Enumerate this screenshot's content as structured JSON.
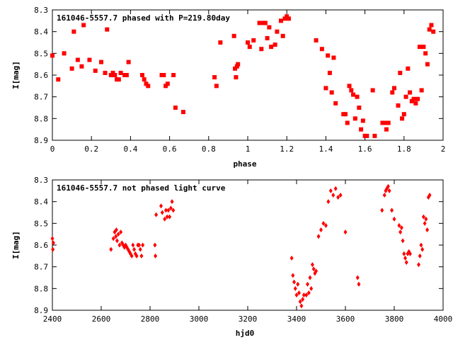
{
  "chart_data": [
    {
      "type": "scatter",
      "title": "161046-5557.7 phased with P=219.80day",
      "xlabel": "phase",
      "ylabel": "I[mag]",
      "xlim": [
        0,
        2
      ],
      "ylim": [
        8.9,
        8.3
      ],
      "y_inverted": true,
      "grid": false,
      "marker": "filled-square",
      "color": "#ff0000",
      "xticks": [
        "0",
        "0.2",
        "0.4",
        "0.6",
        "0.8",
        "1",
        "1.2",
        "1.4",
        "1.6",
        "1.8",
        "2"
      ],
      "xtick_values": [
        0,
        0.2,
        0.4,
        0.6,
        0.8,
        1,
        1.2,
        1.4,
        1.6,
        1.8,
        2
      ],
      "yticks": [
        "8.3",
        "8.4",
        "8.5",
        "8.6",
        "8.7",
        "8.8",
        "8.9"
      ],
      "ytick_values": [
        8.3,
        8.4,
        8.5,
        8.6,
        8.7,
        8.8,
        8.9
      ],
      "x": [
        0.0,
        0.03,
        0.06,
        0.1,
        0.11,
        0.13,
        0.15,
        0.16,
        0.19,
        0.22,
        0.25,
        0.27,
        0.28,
        0.3,
        0.31,
        0.32,
        0.33,
        0.34,
        0.35,
        0.37,
        0.38,
        0.39,
        0.46,
        0.47,
        0.48,
        0.49,
        0.56,
        0.57,
        0.58,
        0.59,
        0.62,
        0.63,
        0.67,
        0.83,
        0.84,
        0.86,
        0.93,
        0.935,
        0.94,
        0.945,
        0.95,
        1.0,
        1.01,
        1.03,
        1.06,
        1.07,
        1.08,
        1.09,
        1.1,
        1.11,
        1.12,
        1.14,
        1.15,
        1.17,
        1.18,
        1.19,
        1.2,
        1.21,
        1.35,
        1.38,
        1.4,
        1.41,
        1.42,
        1.43,
        1.44,
        1.45,
        1.49,
        1.5,
        1.51,
        1.52,
        1.53,
        1.54,
        1.55,
        1.56,
        1.57,
        1.58,
        1.59,
        1.6,
        1.61,
        1.64,
        1.65,
        1.69,
        1.7,
        1.71,
        1.72,
        1.74,
        1.75,
        1.77,
        1.78,
        1.79,
        1.8,
        1.81,
        1.82,
        1.83,
        1.84,
        1.85,
        1.86,
        1.87,
        1.88,
        1.89,
        1.9,
        1.91,
        1.92,
        1.93,
        1.94,
        1.95
      ],
      "y": [
        8.51,
        8.62,
        8.5,
        8.57,
        8.4,
        8.53,
        8.56,
        8.37,
        8.53,
        8.58,
        8.54,
        8.59,
        8.39,
        8.6,
        8.59,
        8.6,
        8.62,
        8.62,
        8.59,
        8.6,
        8.6,
        8.54,
        8.6,
        8.62,
        8.64,
        8.65,
        8.6,
        8.6,
        8.65,
        8.64,
        8.6,
        8.75,
        8.77,
        8.61,
        8.65,
        8.45,
        8.42,
        8.57,
        8.61,
        8.56,
        8.55,
        8.45,
        8.47,
        8.44,
        8.36,
        8.48,
        8.36,
        8.36,
        8.43,
        8.38,
        8.47,
        8.46,
        8.4,
        8.35,
        8.42,
        8.34,
        8.33,
        8.34,
        8.44,
        8.48,
        8.66,
        8.51,
        8.59,
        8.68,
        8.52,
        8.73,
        8.78,
        8.78,
        8.82,
        8.65,
        8.67,
        8.69,
        8.8,
        8.7,
        8.75,
        8.85,
        8.81,
        8.88,
        8.88,
        8.67,
        8.88,
        8.82,
        8.82,
        8.85,
        8.82,
        8.68,
        8.66,
        8.74,
        8.59,
        8.8,
        8.78,
        8.7,
        8.57,
        8.68,
        8.72,
        8.71,
        8.73,
        8.71,
        8.47,
        8.67,
        8.47,
        8.5,
        8.55,
        8.39,
        8.37,
        8.4
      ]
    },
    {
      "type": "scatter",
      "title": "161046-5557.7 not phased light curve",
      "xlabel": "hjd0",
      "ylabel": "I[mag]",
      "xlim": [
        2400,
        4000
      ],
      "ylim": [
        8.9,
        8.3
      ],
      "y_inverted": true,
      "grid": false,
      "marker": "filled-diamond",
      "color": "#ff0000",
      "xticks": [
        "2400",
        "2600",
        "2800",
        "3000",
        "3200",
        "3400",
        "3600",
        "3800",
        "4000"
      ],
      "xtick_values": [
        2400,
        2600,
        2800,
        3000,
        3200,
        3400,
        3600,
        3800,
        4000
      ],
      "yticks": [
        "8.3",
        "8.4",
        "8.5",
        "8.6",
        "8.7",
        "8.8",
        "8.9"
      ],
      "ytick_values": [
        8.3,
        8.4,
        8.5,
        8.6,
        8.7,
        8.8,
        8.9
      ],
      "x": [
        2400,
        2402,
        2404,
        2640,
        2650,
        2655,
        2660,
        2662,
        2665,
        2670,
        2675,
        2680,
        2685,
        2690,
        2695,
        2700,
        2705,
        2710,
        2715,
        2720,
        2725,
        2730,
        2735,
        2740,
        2745,
        2750,
        2755,
        2760,
        2765,
        2770,
        2820,
        2822,
        2825,
        2845,
        2850,
        2860,
        2865,
        2870,
        2875,
        2880,
        2885,
        2890,
        2895,
        3380,
        3385,
        3390,
        3395,
        3400,
        3405,
        3410,
        3415,
        3420,
        3425,
        3430,
        3440,
        3445,
        3450,
        3455,
        3460,
        3465,
        3470,
        3475,
        3480,
        3490,
        3500,
        3510,
        3520,
        3530,
        3540,
        3550,
        3560,
        3570,
        3580,
        3600,
        3650,
        3655,
        3750,
        3760,
        3765,
        3770,
        3775,
        3780,
        3790,
        3800,
        3820,
        3825,
        3830,
        3835,
        3840,
        3845,
        3850,
        3855,
        3860,
        3865,
        3900,
        3905,
        3910,
        3915,
        3920,
        3925,
        3930,
        3935,
        3940,
        3945
      ],
      "y": [
        8.57,
        8.62,
        8.59,
        8.62,
        8.57,
        8.54,
        8.56,
        8.53,
        8.58,
        8.55,
        8.6,
        8.54,
        8.59,
        8.6,
        8.61,
        8.6,
        8.61,
        8.62,
        8.63,
        8.64,
        8.65,
        8.6,
        8.62,
        8.64,
        8.65,
        8.6,
        8.6,
        8.62,
        8.65,
        8.6,
        8.6,
        8.65,
        8.46,
        8.42,
        8.45,
        8.48,
        8.44,
        8.47,
        8.44,
        8.47,
        8.43,
        8.4,
        8.44,
        8.66,
        8.74,
        8.77,
        8.8,
        8.83,
        8.78,
        8.82,
        8.86,
        8.88,
        8.85,
        8.83,
        8.83,
        8.78,
        8.82,
        8.75,
        8.8,
        8.69,
        8.71,
        8.73,
        8.72,
        8.56,
        8.53,
        8.5,
        8.51,
        8.4,
        8.35,
        8.37,
        8.34,
        8.38,
        8.37,
        8.54,
        8.75,
        8.78,
        8.44,
        8.37,
        8.35,
        8.34,
        8.33,
        8.35,
        8.44,
        8.48,
        8.51,
        8.54,
        8.52,
        8.58,
        8.64,
        8.66,
        8.68,
        8.64,
        8.63,
        8.64,
        8.69,
        8.65,
        8.6,
        8.62,
        8.47,
        8.5,
        8.48,
        8.53,
        8.38,
        8.37
      ]
    }
  ]
}
